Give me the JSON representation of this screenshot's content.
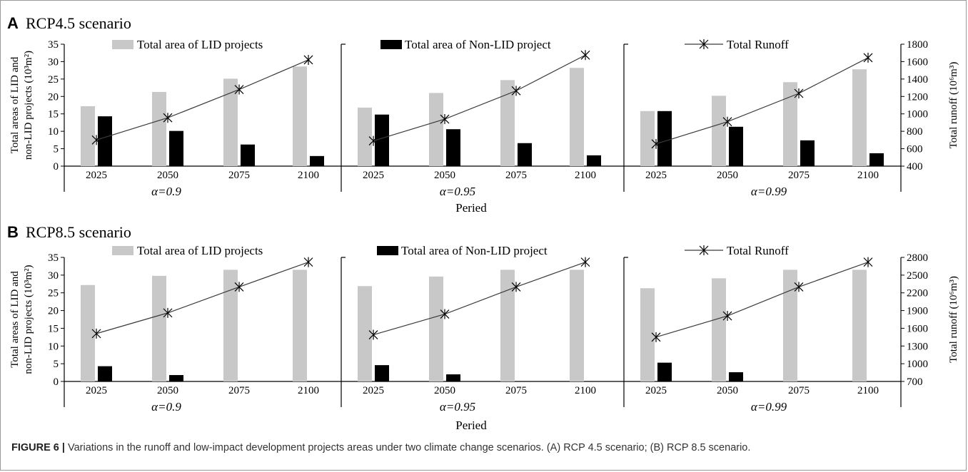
{
  "figure": {
    "caption_label": "FIGURE 6 |",
    "caption_text": " Variations in the runoff and low-impact development projects areas under two climate change scenarios. (A) RCP 4.5 scenario; (B) RCP 8.5 scenario."
  },
  "colors": {
    "lid_bar": "#c8c8c8",
    "nonlid_bar": "#000000",
    "runoff_line": "#3a3a3a",
    "axis": "#000000"
  },
  "chart_data": [
    {
      "type": "bar",
      "panel_letter": "A",
      "title": "RCP4.5 scenario",
      "ylabel_left": [
        "Total areas of LID and",
        "non-LID projects (10³m²)"
      ],
      "ylabel_right": "Total runoff (10⁶m³)",
      "xlabel": "Peried",
      "ylim_left": [
        0,
        35
      ],
      "ylim_right": [
        400,
        1800
      ],
      "yticks_left": [
        0,
        5,
        10,
        15,
        20,
        25,
        30,
        35
      ],
      "yticks_right": [
        400,
        600,
        800,
        1000,
        1200,
        1400,
        1600,
        1800
      ],
      "legend": [
        "Total area of LID projects",
        "Total area of Non-LID project",
        "Total Runoff"
      ],
      "groups": [
        {
          "label": "α=0.9",
          "categories": [
            "2025",
            "2050",
            "2075",
            "2100"
          ],
          "series": [
            {
              "name": "Total area of LID projects",
              "kind": "bar",
              "values": [
                17.2,
                21.3,
                25.1,
                28.6
              ]
            },
            {
              "name": "Total area of Non-LID project",
              "kind": "bar",
              "values": [
                14.3,
                10.1,
                6.2,
                2.9
              ]
            },
            {
              "name": "Total Runoff",
              "kind": "line",
              "values": [
                700,
                955,
                1280,
                1620
              ]
            }
          ]
        },
        {
          "label": "α=0.95",
          "categories": [
            "2025",
            "2050",
            "2075",
            "2100"
          ],
          "series": [
            {
              "name": "Total area of LID projects",
              "kind": "bar",
              "values": [
                16.8,
                21.0,
                24.7,
                28.2
              ]
            },
            {
              "name": "Total area of Non-LID project",
              "kind": "bar",
              "values": [
                14.8,
                10.6,
                6.6,
                3.1
              ]
            },
            {
              "name": "Total Runoff",
              "kind": "line",
              "values": [
                690,
                940,
                1265,
                1675
              ]
            }
          ]
        },
        {
          "label": "α=0.99",
          "categories": [
            "2025",
            "2050",
            "2075",
            "2100"
          ],
          "series": [
            {
              "name": "Total area of LID projects",
              "kind": "bar",
              "values": [
                15.8,
                20.2,
                24.1,
                27.8
              ]
            },
            {
              "name": "Total area of Non-LID project",
              "kind": "bar",
              "values": [
                15.8,
                11.3,
                7.4,
                3.7
              ]
            },
            {
              "name": "Total Runoff",
              "kind": "line",
              "values": [
                655,
                910,
                1235,
                1645
              ]
            }
          ]
        }
      ]
    },
    {
      "type": "bar",
      "panel_letter": "B",
      "title": "RCP8.5 scenario",
      "ylabel_left": [
        "Total areas of LID and",
        "non-LID projects (10³m²)"
      ],
      "ylabel_right": "Total runoff (10⁶m³)",
      "xlabel": "Peried",
      "ylim_left": [
        0,
        35
      ],
      "ylim_right": [
        700,
        2800
      ],
      "yticks_left": [
        0,
        5,
        10,
        15,
        20,
        25,
        30,
        35
      ],
      "yticks_right": [
        700,
        1000,
        1300,
        1600,
        1900,
        2200,
        2500,
        2800
      ],
      "legend": [
        "Total area of LID projects",
        "Total area of Non-LID project",
        "Total Runoff"
      ],
      "groups": [
        {
          "label": "α=0.9",
          "categories": [
            "2025",
            "2050",
            "2075",
            "2100"
          ],
          "series": [
            {
              "name": "Total area of LID projects",
              "kind": "bar",
              "values": [
                27.2,
                29.8,
                31.5,
                31.5
              ]
            },
            {
              "name": "Total area of Non-LID project",
              "kind": "bar",
              "values": [
                4.3,
                1.8,
                0,
                0
              ]
            },
            {
              "name": "Total Runoff",
              "kind": "line",
              "values": [
                1510,
                1860,
                2300,
                2720
              ]
            }
          ]
        },
        {
          "label": "α=0.95",
          "categories": [
            "2025",
            "2050",
            "2075",
            "2100"
          ],
          "series": [
            {
              "name": "Total area of LID projects",
              "kind": "bar",
              "values": [
                26.9,
                29.6,
                31.5,
                31.5
              ]
            },
            {
              "name": "Total area of Non-LID project",
              "kind": "bar",
              "values": [
                4.6,
                2.0,
                0,
                0
              ]
            },
            {
              "name": "Total Runoff",
              "kind": "line",
              "values": [
                1490,
                1840,
                2300,
                2720
              ]
            }
          ]
        },
        {
          "label": "α=0.99",
          "categories": [
            "2025",
            "2050",
            "2075",
            "2100"
          ],
          "series": [
            {
              "name": "Total area of LID projects",
              "kind": "bar",
              "values": [
                26.3,
                29.1,
                31.5,
                31.5
              ]
            },
            {
              "name": "Total area of Non-LID project",
              "kind": "bar",
              "values": [
                5.3,
                2.6,
                0,
                0
              ]
            },
            {
              "name": "Total Runoff",
              "kind": "line",
              "values": [
                1450,
                1810,
                2300,
                2720
              ]
            }
          ]
        }
      ]
    }
  ]
}
